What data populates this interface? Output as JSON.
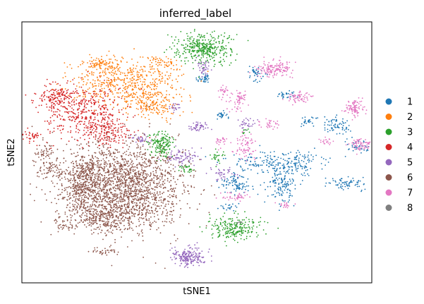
{
  "chart_data": {
    "type": "scatter",
    "title": "inferred_label",
    "xlabel": "tSNE1",
    "ylabel": "tSNE2",
    "xticks": [],
    "yticks": [],
    "xlim": [
      -50,
      50
    ],
    "ylim": [
      -50,
      50
    ],
    "grid": false,
    "legend_position": "right",
    "series": [
      {
        "name": "1",
        "color": "#1f77b4",
        "clusters": [
          {
            "cx": 2,
            "cy": 28,
            "sx": 1.0,
            "sy": 1.2,
            "n": 40
          },
          {
            "cx": 7,
            "cy": 14,
            "sx": 1.0,
            "sy": 0.8,
            "n": 25
          },
          {
            "cx": 17,
            "cy": 30,
            "sx": 1.2,
            "sy": 1.5,
            "n": 40
          },
          {
            "cx": 26,
            "cy": 22,
            "sx": 1.2,
            "sy": 0.8,
            "n": 30
          },
          {
            "cx": 32,
            "cy": 12,
            "sx": 1.2,
            "sy": 1.0,
            "n": 25
          },
          {
            "cx": 40,
            "cy": 10,
            "sx": 2.0,
            "sy": 1.6,
            "n": 70
          },
          {
            "cx": 46,
            "cy": 2,
            "sx": 1.8,
            "sy": 1.2,
            "n": 40
          },
          {
            "cx": 20,
            "cy": -4,
            "sx": 5.5,
            "sy": 2.0,
            "n": 140
          },
          {
            "cx": 30,
            "cy": -4,
            "sx": 4.0,
            "sy": 2.5,
            "n": 80
          },
          {
            "cx": 11,
            "cy": -12,
            "sx": 2.4,
            "sy": 2.2,
            "n": 90
          },
          {
            "cx": 24,
            "cy": -12,
            "sx": 2.0,
            "sy": 3.5,
            "n": 150
          },
          {
            "cx": 43,
            "cy": -12,
            "sx": 3.0,
            "sy": 1.2,
            "n": 70
          },
          {
            "cx": 9,
            "cy": -21,
            "sx": 1.2,
            "sy": 0.8,
            "n": 20
          }
        ]
      },
      {
        "name": "2",
        "color": "#ff7f0e",
        "clusters": [
          {
            "cx": -20,
            "cy": 27,
            "sx": 7.5,
            "sy": 4.5,
            "n": 520
          },
          {
            "cx": -13,
            "cy": 18,
            "sx": 3.5,
            "sy": 3.0,
            "n": 160
          },
          {
            "cx": -27,
            "cy": 34,
            "sx": 3.0,
            "sy": 1.6,
            "n": 90
          },
          {
            "cx": -10,
            "cy": 34,
            "sx": 2.5,
            "sy": 1.5,
            "n": 60
          }
        ]
      },
      {
        "name": "3",
        "color": "#2ca02c",
        "clusters": [
          {
            "cx": 2,
            "cy": 40,
            "sx": 3.8,
            "sy": 2.8,
            "n": 380
          },
          {
            "cx": -10,
            "cy": 3,
            "sx": 1.8,
            "sy": 2.4,
            "n": 160
          },
          {
            "cx": 11,
            "cy": -29,
            "sx": 4.0,
            "sy": 2.2,
            "n": 220
          },
          {
            "cx": 6,
            "cy": -2,
            "sx": 1.0,
            "sy": 1.5,
            "n": 25
          },
          {
            "cx": -3,
            "cy": -6,
            "sx": 1.2,
            "sy": 0.8,
            "n": 30
          },
          {
            "cx": 14,
            "cy": 8,
            "sx": 0.6,
            "sy": 0.6,
            "n": 10
          }
        ]
      },
      {
        "name": "4",
        "color": "#d62728",
        "clusters": [
          {
            "cx": -32,
            "cy": 15,
            "sx": 5.5,
            "sy": 5.0,
            "n": 420
          },
          {
            "cx": -40,
            "cy": 21,
            "sx": 3.0,
            "sy": 2.5,
            "n": 160
          },
          {
            "cx": -25,
            "cy": 7,
            "sx": 3.2,
            "sy": 2.5,
            "n": 140
          },
          {
            "cx": -47,
            "cy": 6,
            "sx": 1.2,
            "sy": 1.2,
            "n": 40
          }
        ]
      },
      {
        "name": "5",
        "color": "#9467bd",
        "clusters": [
          {
            "cx": -2,
            "cy": -40,
            "sx": 2.4,
            "sy": 1.8,
            "n": 190
          },
          {
            "cx": 2,
            "cy": 33,
            "sx": 1.0,
            "sy": 1.8,
            "n": 40
          },
          {
            "cx": 0,
            "cy": 10,
            "sx": 1.5,
            "sy": 1.0,
            "n": 50
          },
          {
            "cx": 14,
            "cy": 11,
            "sx": 1.2,
            "sy": 1.0,
            "n": 30
          },
          {
            "cx": -4,
            "cy": -2,
            "sx": 2.2,
            "sy": 1.5,
            "n": 80
          },
          {
            "cx": 7,
            "cy": -8,
            "sx": 2.0,
            "sy": 1.5,
            "n": 40
          },
          {
            "cx": -16,
            "cy": 5,
            "sx": 1.5,
            "sy": 1.0,
            "n": 30
          },
          {
            "cx": -6,
            "cy": 17,
            "sx": 1.5,
            "sy": 1.0,
            "n": 20
          }
        ]
      },
      {
        "name": "6",
        "color": "#8c564b",
        "clusters": [
          {
            "cx": -21,
            "cy": -13,
            "sx": 8.5,
            "sy": 8.5,
            "n": 1900
          },
          {
            "cx": -33,
            "cy": -13,
            "sx": 3.0,
            "sy": 5.5,
            "n": 300
          },
          {
            "cx": -27,
            "cy": -25,
            "sx": 5.5,
            "sy": 2.5,
            "n": 220
          },
          {
            "cx": -42,
            "cy": -7,
            "sx": 2.5,
            "sy": 2.0,
            "n": 70
          },
          {
            "cx": -44,
            "cy": 0,
            "sx": 1.5,
            "sy": 1.8,
            "n": 50
          },
          {
            "cx": -38,
            "cy": -28,
            "sx": 1.5,
            "sy": 1.0,
            "n": 30
          },
          {
            "cx": -27,
            "cy": -38,
            "sx": 2.0,
            "sy": 0.8,
            "n": 30
          },
          {
            "cx": -32,
            "cy": -6,
            "sx": 2.0,
            "sy": 2.0,
            "n": 60
          }
        ]
      },
      {
        "name": "7",
        "color": "#e377c2",
        "clusters": [
          {
            "cx": 22,
            "cy": 32,
            "sx": 2.5,
            "sy": 1.5,
            "n": 150
          },
          {
            "cx": 29,
            "cy": 21,
            "sx": 1.5,
            "sy": 1.0,
            "n": 60
          },
          {
            "cx": 45,
            "cy": 17,
            "sx": 1.5,
            "sy": 1.8,
            "n": 90
          },
          {
            "cx": 47,
            "cy": 3,
            "sx": 1.6,
            "sy": 1.2,
            "n": 70
          },
          {
            "cx": 12,
            "cy": 20,
            "sx": 1.2,
            "sy": 2.0,
            "n": 60
          },
          {
            "cx": 14,
            "cy": 2,
            "sx": 1.5,
            "sy": 2.5,
            "n": 70
          },
          {
            "cx": 21,
            "cy": 11,
            "sx": 1.2,
            "sy": 1.0,
            "n": 30
          },
          {
            "cx": 7,
            "cy": 4,
            "sx": 1.0,
            "sy": 1.2,
            "n": 25
          },
          {
            "cx": 11,
            "cy": -17,
            "sx": 1.8,
            "sy": 0.8,
            "n": 40
          },
          {
            "cx": 25,
            "cy": -20,
            "sx": 1.0,
            "sy": 0.6,
            "n": 20
          },
          {
            "cx": 37,
            "cy": 4,
            "sx": 1.0,
            "sy": 1.0,
            "n": 20
          },
          {
            "cx": 8,
            "cy": 23,
            "sx": 0.8,
            "sy": 1.5,
            "n": 25
          }
        ]
      },
      {
        "name": "8",
        "color": "#7f7f7f",
        "clusters": [
          {
            "cx": 12,
            "cy": -27,
            "sx": 0.5,
            "sy": 0.5,
            "n": 6
          }
        ]
      }
    ]
  }
}
